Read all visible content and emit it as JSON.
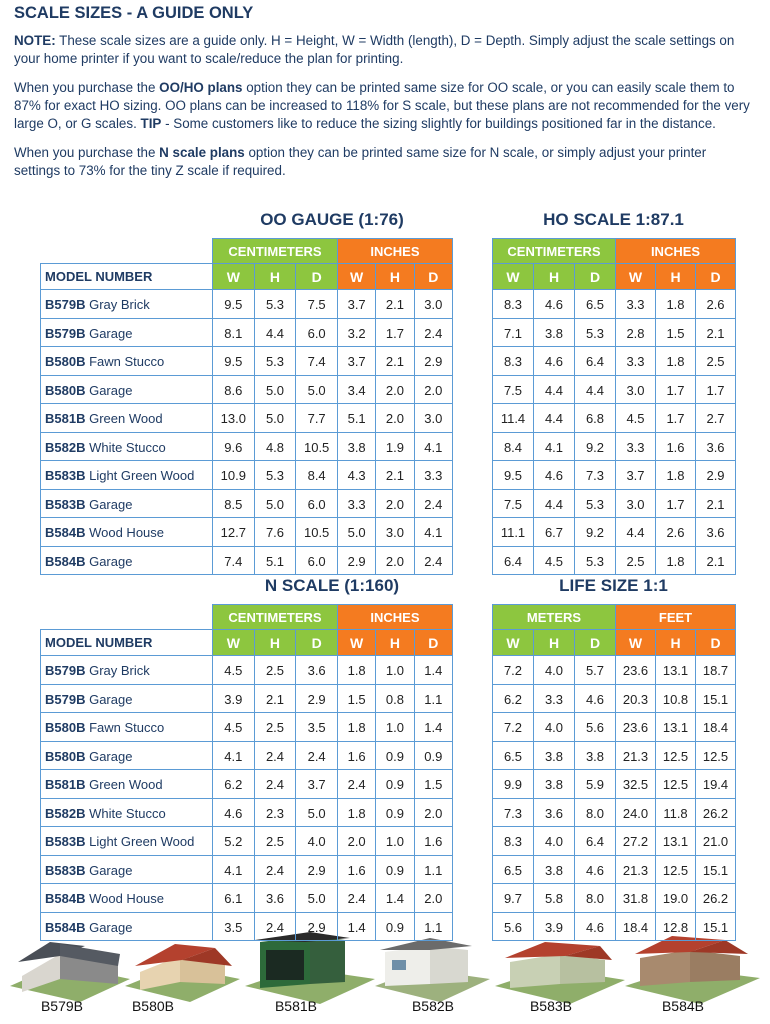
{
  "title": "SCALE SIZES - A GUIDE ONLY",
  "paragraphs": [
    [
      {
        "text": "NOTE:",
        "bold": true
      },
      {
        "text": " These scale sizes are a guide only. H = Height, W = Width (length), D = Depth. Simply adjust the scale settings on your home printer if you want to scale/reduce the plan for printing.",
        "bold": false
      }
    ],
    [
      {
        "text": "When you purchase the ",
        "bold": false
      },
      {
        "text": "OO/HO plans",
        "bold": true
      },
      {
        "text": " option they can be printed same size for OO scale, or you can easily scale them to 87% for exact HO sizing. OO plans can be increased to 118% for S scale, but these plans are not recommended for the very large O, or G scales. ",
        "bold": false
      },
      {
        "text": "TIP",
        "bold": true
      },
      {
        "text": " - Some customers like to reduce the sizing slightly for buildings positioned far in the distance.",
        "bold": false
      }
    ],
    [
      {
        "text": "When you purchase the ",
        "bold": false
      },
      {
        "text": "N scale plans",
        "bold": true
      },
      {
        "text": " option they can be printed same size for N scale, or simply adjust your printer settings to 73% for the tiny Z scale if required.",
        "bold": false
      }
    ]
  ],
  "sections": [
    {
      "model_header": "MODEL NUMBER",
      "models": [
        {
          "code": "B579B",
          "name": "Gray Brick"
        },
        {
          "code": "B579B",
          "name": "Garage"
        },
        {
          "code": "B580B",
          "name": "Fawn Stucco"
        },
        {
          "code": "B580B",
          "name": "Garage"
        },
        {
          "code": "B581B",
          "name": "Green Wood"
        },
        {
          "code": "B582B",
          "name": "White Stucco"
        },
        {
          "code": "B583B",
          "name": "Light Green Wood"
        },
        {
          "code": "B583B",
          "name": "Garage"
        },
        {
          "code": "B584B",
          "name": "Wood House"
        },
        {
          "code": "B584B",
          "name": "Garage"
        }
      ],
      "tables": [
        {
          "title": "OO GAUGE (1:76)",
          "groups": [
            "CENTIMETERS",
            "INCHES"
          ],
          "columns": [
            "W",
            "H",
            "D",
            "W",
            "H",
            "D"
          ],
          "rows": [
            [
              "9.5",
              "5.3",
              "7.5",
              "3.7",
              "2.1",
              "3.0"
            ],
            [
              "8.1",
              "4.4",
              "6.0",
              "3.2",
              "1.7",
              "2.4"
            ],
            [
              "9.5",
              "5.3",
              "7.4",
              "3.7",
              "2.1",
              "2.9"
            ],
            [
              "8.6",
              "5.0",
              "5.0",
              "3.4",
              "2.0",
              "2.0"
            ],
            [
              "13.0",
              "5.0",
              "7.7",
              "5.1",
              "2.0",
              "3.0"
            ],
            [
              "9.6",
              "4.8",
              "10.5",
              "3.8",
              "1.9",
              "4.1"
            ],
            [
              "10.9",
              "5.3",
              "8.4",
              "4.3",
              "2.1",
              "3.3"
            ],
            [
              "8.5",
              "5.0",
              "6.0",
              "3.3",
              "2.0",
              "2.4"
            ],
            [
              "12.7",
              "7.6",
              "10.5",
              "5.0",
              "3.0",
              "4.1"
            ],
            [
              "7.4",
              "5.1",
              "6.0",
              "2.9",
              "2.0",
              "2.4"
            ]
          ]
        },
        {
          "title": "HO SCALE 1:87.1",
          "groups": [
            "CENTIMETERS",
            "INCHES"
          ],
          "columns": [
            "W",
            "H",
            "D",
            "W",
            "H",
            "D"
          ],
          "rows": [
            [
              "8.3",
              "4.6",
              "6.5",
              "3.3",
              "1.8",
              "2.6"
            ],
            [
              "7.1",
              "3.8",
              "5.3",
              "2.8",
              "1.5",
              "2.1"
            ],
            [
              "8.3",
              "4.6",
              "6.4",
              "3.3",
              "1.8",
              "2.5"
            ],
            [
              "7.5",
              "4.4",
              "4.4",
              "3.0",
              "1.7",
              "1.7"
            ],
            [
              "11.4",
              "4.4",
              "6.8",
              "4.5",
              "1.7",
              "2.7"
            ],
            [
              "8.4",
              "4.1",
              "9.2",
              "3.3",
              "1.6",
              "3.6"
            ],
            [
              "9.5",
              "4.6",
              "7.3",
              "3.7",
              "1.8",
              "2.9"
            ],
            [
              "7.5",
              "4.4",
              "5.3",
              "3.0",
              "1.7",
              "2.1"
            ],
            [
              "11.1",
              "6.7",
              "9.2",
              "4.4",
              "2.6",
              "3.6"
            ],
            [
              "6.4",
              "4.5",
              "5.3",
              "2.5",
              "1.8",
              "2.1"
            ]
          ]
        }
      ]
    },
    {
      "model_header": "MODEL NUMBER",
      "models": [
        {
          "code": "B579B",
          "name": "Gray Brick"
        },
        {
          "code": "B579B",
          "name": "Garage"
        },
        {
          "code": "B580B",
          "name": "Fawn Stucco"
        },
        {
          "code": "B580B",
          "name": "Garage"
        },
        {
          "code": "B581B",
          "name": "Green Wood"
        },
        {
          "code": "B582B",
          "name": "White Stucco"
        },
        {
          "code": "B583B",
          "name": "Light Green Wood"
        },
        {
          "code": "B583B",
          "name": "Garage"
        },
        {
          "code": "B584B",
          "name": "Wood House"
        },
        {
          "code": "B584B",
          "name": "Garage"
        }
      ],
      "tables": [
        {
          "title": "N SCALE (1:160)",
          "groups": [
            "CENTIMETERS",
            "INCHES"
          ],
          "columns": [
            "W",
            "H",
            "D",
            "W",
            "H",
            "D"
          ],
          "rows": [
            [
              "4.5",
              "2.5",
              "3.6",
              "1.8",
              "1.0",
              "1.4"
            ],
            [
              "3.9",
              "2.1",
              "2.9",
              "1.5",
              "0.8",
              "1.1"
            ],
            [
              "4.5",
              "2.5",
              "3.5",
              "1.8",
              "1.0",
              "1.4"
            ],
            [
              "4.1",
              "2.4",
              "2.4",
              "1.6",
              "0.9",
              "0.9"
            ],
            [
              "6.2",
              "2.4",
              "3.7",
              "2.4",
              "0.9",
              "1.5"
            ],
            [
              "4.6",
              "2.3",
              "5.0",
              "1.8",
              "0.9",
              "2.0"
            ],
            [
              "5.2",
              "2.5",
              "4.0",
              "2.0",
              "1.0",
              "1.6"
            ],
            [
              "4.1",
              "2.4",
              "2.9",
              "1.6",
              "0.9",
              "1.1"
            ],
            [
              "6.1",
              "3.6",
              "5.0",
              "2.4",
              "1.4",
              "2.0"
            ],
            [
              "3.5",
              "2.4",
              "2.9",
              "1.4",
              "0.9",
              "1.1"
            ]
          ]
        },
        {
          "title": "LIFE SIZE 1:1",
          "groups": [
            "METERS",
            "FEET"
          ],
          "columns": [
            "W",
            "H",
            "D",
            "W",
            "H",
            "D"
          ],
          "rows": [
            [
              "7.2",
              "4.0",
              "5.7",
              "23.6",
              "13.1",
              "18.7"
            ],
            [
              "6.2",
              "3.3",
              "4.6",
              "20.3",
              "10.8",
              "15.1"
            ],
            [
              "7.2",
              "4.0",
              "5.6",
              "23.6",
              "13.1",
              "18.4"
            ],
            [
              "6.5",
              "3.8",
              "3.8",
              "21.3",
              "12.5",
              "12.5"
            ],
            [
              "9.9",
              "3.8",
              "5.9",
              "32.5",
              "12.5",
              "19.4"
            ],
            [
              "7.3",
              "3.6",
              "8.0",
              "24.0",
              "11.8",
              "26.2"
            ],
            [
              "8.3",
              "4.0",
              "6.4",
              "27.2",
              "13.1",
              "21.0"
            ],
            [
              "6.5",
              "3.8",
              "4.6",
              "21.3",
              "12.5",
              "15.1"
            ],
            [
              "9.7",
              "5.8",
              "8.0",
              "31.8",
              "19.0",
              "26.2"
            ],
            [
              "5.6",
              "3.9",
              "4.6",
              "18.4",
              "12.8",
              "15.1"
            ]
          ]
        }
      ]
    }
  ],
  "houses": [
    "B579B",
    "B580B",
    "B581B",
    "B582B",
    "B583B",
    "B584B"
  ]
}
